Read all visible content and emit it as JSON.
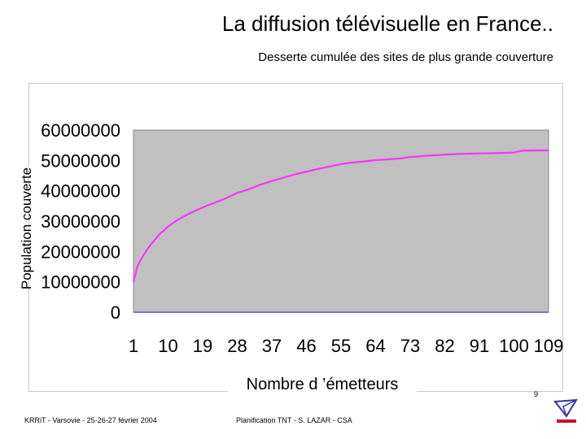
{
  "slide": {
    "title": "La diffusion télévisuelle en France..",
    "footer_left": "KRRiT - Varsovie - 25-26-27 février 2004",
    "footer_center": "Planification TNT - S. LAZAR - CSA",
    "page_number": "9"
  },
  "colors": {
    "plot_bg": "#c0c0c0",
    "line": "#ff33ff",
    "baseline": "#7777cc"
  },
  "chart_data": {
    "type": "line",
    "title": "Desserte cumulée des sites de plus grande couverture",
    "xlabel": "Nombre d ’émetteurs",
    "ylabel": "Population couverte",
    "ylim": [
      0,
      60000000
    ],
    "yticks": [
      "0",
      "10000000",
      "20000000",
      "30000000",
      "40000000",
      "50000000",
      "60000000"
    ],
    "xticks": [
      "1",
      "10",
      "19",
      "28",
      "37",
      "46",
      "55",
      "64",
      "73",
      "82",
      "91",
      "100",
      "109"
    ],
    "grid": false,
    "series": [
      {
        "name": "Population couverte",
        "x": [
          1,
          2,
          3,
          4,
          5,
          6,
          7,
          8,
          9,
          10,
          12,
          14,
          16,
          19,
          22,
          25,
          28,
          31,
          34,
          37,
          40,
          43,
          46,
          49,
          52,
          55,
          58,
          62,
          64,
          70,
          73,
          77,
          82,
          85,
          91,
          95,
          100,
          102,
          106,
          109
        ],
        "y": [
          10000000,
          15000000,
          17500000,
          19500000,
          21500000,
          23000000,
          24500000,
          26000000,
          27000000,
          28200000,
          30000000,
          31500000,
          32800000,
          34500000,
          36000000,
          37500000,
          39300000,
          40500000,
          42000000,
          43200000,
          44300000,
          45400000,
          46300000,
          47200000,
          48000000,
          48800000,
          49300000,
          49800000,
          50100000,
          50600000,
          51100000,
          51500000,
          51900000,
          52100000,
          52300000,
          52400000,
          52600000,
          53200000,
          53300000,
          53300000
        ]
      }
    ]
  }
}
